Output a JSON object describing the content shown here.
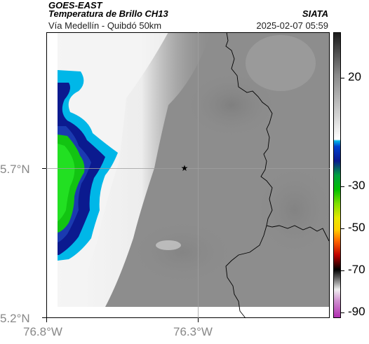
{
  "header": {
    "source": "GOES-EAST",
    "product": "Temperatura de Brillo CH13",
    "brand": "SIATA",
    "region": "Vía Medellín - Quibdó 50km",
    "timestamp": "2025-02-07 05:59"
  },
  "axes": {
    "y_ticks": [
      "5.7°N",
      "5.2°N"
    ],
    "x_ticks": [
      "76.8°W",
      "76.3°W"
    ]
  },
  "colorbar": {
    "labels": [
      "20",
      "-30",
      "-50",
      "-70",
      "-90"
    ],
    "stops": [
      {
        "value": 20,
        "color": "#9a9a9a"
      },
      {
        "value": -22,
        "color": "#00b7e8"
      },
      {
        "value": -30,
        "color": "#0b1a8f"
      },
      {
        "value": -40,
        "color": "#00c000"
      },
      {
        "value": -50,
        "color": "#e8e800"
      },
      {
        "value": -60,
        "color": "#e00000"
      },
      {
        "value": -70,
        "color": "#000000"
      },
      {
        "value": -80,
        "color": "#ffffff"
      },
      {
        "value": -90,
        "color": "#a000a0"
      }
    ]
  },
  "map": {
    "marker": "star-icon",
    "colors": {
      "cloud_gray": "#8e8e8e",
      "cloud_light": "#f2f2f2",
      "cold_cyan": "#00b7e8",
      "cold_blue": "#0b1a8f",
      "cold_green": "#1fd01f",
      "border": "#000000",
      "gridline": "#9a9a9a"
    }
  }
}
